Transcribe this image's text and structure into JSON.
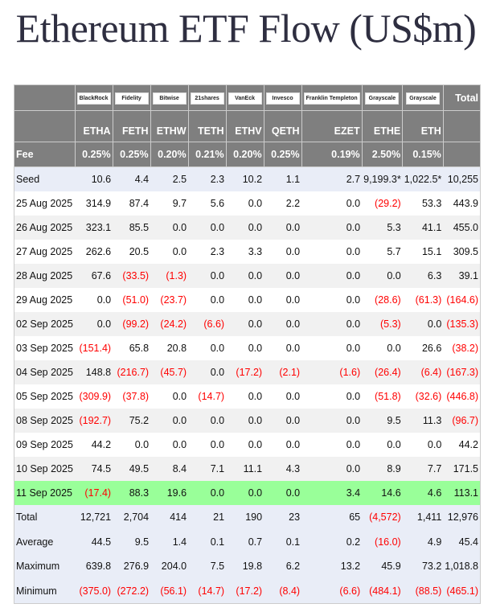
{
  "title": "Ethereum ETF Flow (US$m)",
  "issuers": [
    "BlackRock",
    "Fidelity",
    "Bitwise",
    "21shares",
    "VanEck",
    "Invesco",
    "Franklin Templeton",
    "Grayscale",
    "Grayscale"
  ],
  "tickers": [
    "ETHA",
    "FETH",
    "ETHW",
    "TETH",
    "ETHV",
    "QETH",
    "EZET",
    "ETHE",
    "ETH"
  ],
  "total_label": "Total",
  "fee_label": "Fee",
  "fees": [
    "0.25%",
    "0.25%",
    "0.20%",
    "0.21%",
    "0.20%",
    "0.25%",
    "0.19%",
    "2.50%",
    "0.15%"
  ],
  "rows": [
    {
      "label": "Seed",
      "style": "seed",
      "values": [
        "10.6",
        "4.4",
        "2.5",
        "2.3",
        "10.2",
        "1.1",
        "2.7",
        "9,199.3*",
        "1,022.5*",
        "10,255"
      ]
    },
    {
      "label": "25 Aug 2025",
      "style": "plain",
      "values": [
        "314.9",
        "87.4",
        "9.7",
        "5.6",
        "0.0",
        "2.2",
        "0.0",
        "(29.2)",
        "53.3",
        "443.9"
      ]
    },
    {
      "label": "26 Aug 2025",
      "style": "alt",
      "values": [
        "323.1",
        "85.5",
        "0.0",
        "0.0",
        "0.0",
        "0.0",
        "0.0",
        "5.3",
        "41.1",
        "455.0"
      ]
    },
    {
      "label": "27 Aug 2025",
      "style": "plain",
      "values": [
        "262.6",
        "20.5",
        "0.0",
        "2.3",
        "3.3",
        "0.0",
        "0.0",
        "5.7",
        "15.1",
        "309.5"
      ]
    },
    {
      "label": "28 Aug 2025",
      "style": "alt",
      "values": [
        "67.6",
        "(33.5)",
        "(1.3)",
        "0.0",
        "0.0",
        "0.0",
        "0.0",
        "0.0",
        "6.3",
        "39.1"
      ]
    },
    {
      "label": "29 Aug 2025",
      "style": "plain",
      "values": [
        "0.0",
        "(51.0)",
        "(23.7)",
        "0.0",
        "0.0",
        "0.0",
        "0.0",
        "(28.6)",
        "(61.3)",
        "(164.6)"
      ]
    },
    {
      "label": "02 Sep 2025",
      "style": "alt",
      "values": [
        "0.0",
        "(99.2)",
        "(24.2)",
        "(6.6)",
        "0.0",
        "0.0",
        "0.0",
        "(5.3)",
        "0.0",
        "(135.3)"
      ]
    },
    {
      "label": "03 Sep 2025",
      "style": "plain",
      "values": [
        "(151.4)",
        "65.8",
        "20.8",
        "0.0",
        "0.0",
        "0.0",
        "0.0",
        "0.0",
        "26.6",
        "(38.2)"
      ]
    },
    {
      "label": "04 Sep 2025",
      "style": "alt",
      "values": [
        "148.8",
        "(216.7)",
        "(45.7)",
        "0.0",
        "(17.2)",
        "(2.1)",
        "(1.6)",
        "(26.4)",
        "(6.4)",
        "(167.3)"
      ]
    },
    {
      "label": "05 Sep 2025",
      "style": "plain",
      "values": [
        "(309.9)",
        "(37.8)",
        "0.0",
        "(14.7)",
        "0.0",
        "0.0",
        "0.0",
        "(51.8)",
        "(32.6)",
        "(446.8)"
      ]
    },
    {
      "label": "08 Sep 2025",
      "style": "alt",
      "values": [
        "(192.7)",
        "75.2",
        "0.0",
        "0.0",
        "0.0",
        "0.0",
        "0.0",
        "9.5",
        "11.3",
        "(96.7)"
      ]
    },
    {
      "label": "09 Sep 2025",
      "style": "plain",
      "values": [
        "44.2",
        "0.0",
        "0.0",
        "0.0",
        "0.0",
        "0.0",
        "0.0",
        "0.0",
        "0.0",
        "44.2"
      ]
    },
    {
      "label": "10 Sep 2025",
      "style": "alt",
      "values": [
        "74.5",
        "49.5",
        "8.4",
        "7.1",
        "11.1",
        "4.3",
        "0.0",
        "8.9",
        "7.7",
        "171.5"
      ]
    },
    {
      "label": "11 Sep 2025",
      "style": "today",
      "values": [
        "(17.4)",
        "88.3",
        "19.6",
        "0.0",
        "0.0",
        "0.0",
        "3.4",
        "14.6",
        "4.6",
        "113.1"
      ]
    },
    {
      "label": "Total",
      "style": "summary",
      "values": [
        "12,721",
        "2,704",
        "414",
        "21",
        "190",
        "23",
        "65",
        "(4,572)",
        "1,411",
        "12,976"
      ]
    },
    {
      "label": "Average",
      "style": "summary",
      "values": [
        "44.5",
        "9.5",
        "1.4",
        "0.1",
        "0.7",
        "0.1",
        "0.2",
        "(16.0)",
        "4.9",
        "45.4"
      ]
    },
    {
      "label": "Maximum",
      "style": "summary",
      "values": [
        "639.8",
        "276.9",
        "204.0",
        "7.5",
        "19.8",
        "6.2",
        "13.2",
        "45.9",
        "73.2",
        "1,018.8"
      ]
    },
    {
      "label": "Minimum",
      "style": "summary",
      "values": [
        "(375.0)",
        "(272.2)",
        "(56.1)",
        "(14.7)",
        "(17.2)",
        "(8.4)",
        "(6.6)",
        "(484.1)",
        "(88.5)",
        "(465.1)"
      ]
    }
  ],
  "colors": {
    "header": "#7f7f7f",
    "negative": "#ff0000",
    "highlight": "#99ff99",
    "summary": "#e9edf7"
  }
}
